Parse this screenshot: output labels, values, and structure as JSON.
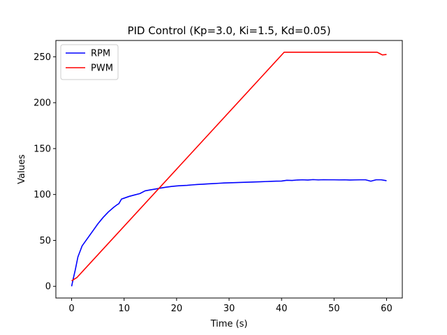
{
  "chart_data": {
    "type": "line",
    "title": "PID Control (Kp=3.0, Ki=1.5, Kd=0.05)",
    "xlabel": "Time (s)",
    "ylabel": "Values",
    "xlim": [
      -3,
      63
    ],
    "ylim": [
      -12.75,
      267.75
    ],
    "xticks": [
      0,
      10,
      20,
      30,
      40,
      50,
      60
    ],
    "yticks": [
      0,
      50,
      100,
      150,
      200,
      250
    ],
    "grid": false,
    "legend_position": "top-left",
    "series": [
      {
        "name": "RPM",
        "color": "#0000ff",
        "x": [
          0,
          0.3,
          0.7,
          1.2,
          2,
          3,
          4,
          5,
          6,
          7,
          8,
          8.7,
          9,
          9.5,
          10,
          11,
          12,
          13,
          14,
          15,
          16,
          17,
          18,
          19,
          20,
          21,
          22,
          23,
          24,
          25,
          26,
          27,
          28,
          29,
          30,
          31,
          32,
          33,
          34,
          35,
          36,
          37,
          38,
          39,
          40,
          41,
          42,
          43,
          44,
          45,
          46,
          47,
          48,
          49,
          50,
          51,
          52,
          53,
          54,
          55,
          56,
          57,
          58,
          59,
          60
        ],
        "values": [
          0,
          8,
          18,
          32,
          44,
          52,
          60,
          68,
          75,
          81,
          86,
          89,
          90,
          95,
          96,
          98,
          99.5,
          101,
          104,
          105,
          106,
          107,
          108,
          108.7,
          109.3,
          109.7,
          110,
          110.5,
          110.9,
          111.2,
          111.6,
          111.9,
          112.2,
          112.5,
          112.7,
          112.9,
          113.1,
          113.3,
          113.5,
          113.7,
          113.9,
          114.1,
          114.3,
          114.5,
          114.6,
          115.5,
          115.3,
          115.8,
          116,
          115.8,
          116.2,
          115.9,
          116.1,
          116,
          116,
          115.9,
          116,
          115.8,
          115.9,
          116,
          116,
          114.5,
          116,
          116,
          115
        ]
      },
      {
        "name": "PWM",
        "color": "#ff0000",
        "x": [
          0,
          1,
          40.5,
          58.2,
          58.7,
          59.2,
          60
        ],
        "values": [
          6,
          9.5,
          255,
          255,
          253.5,
          252,
          252.5
        ]
      }
    ]
  }
}
